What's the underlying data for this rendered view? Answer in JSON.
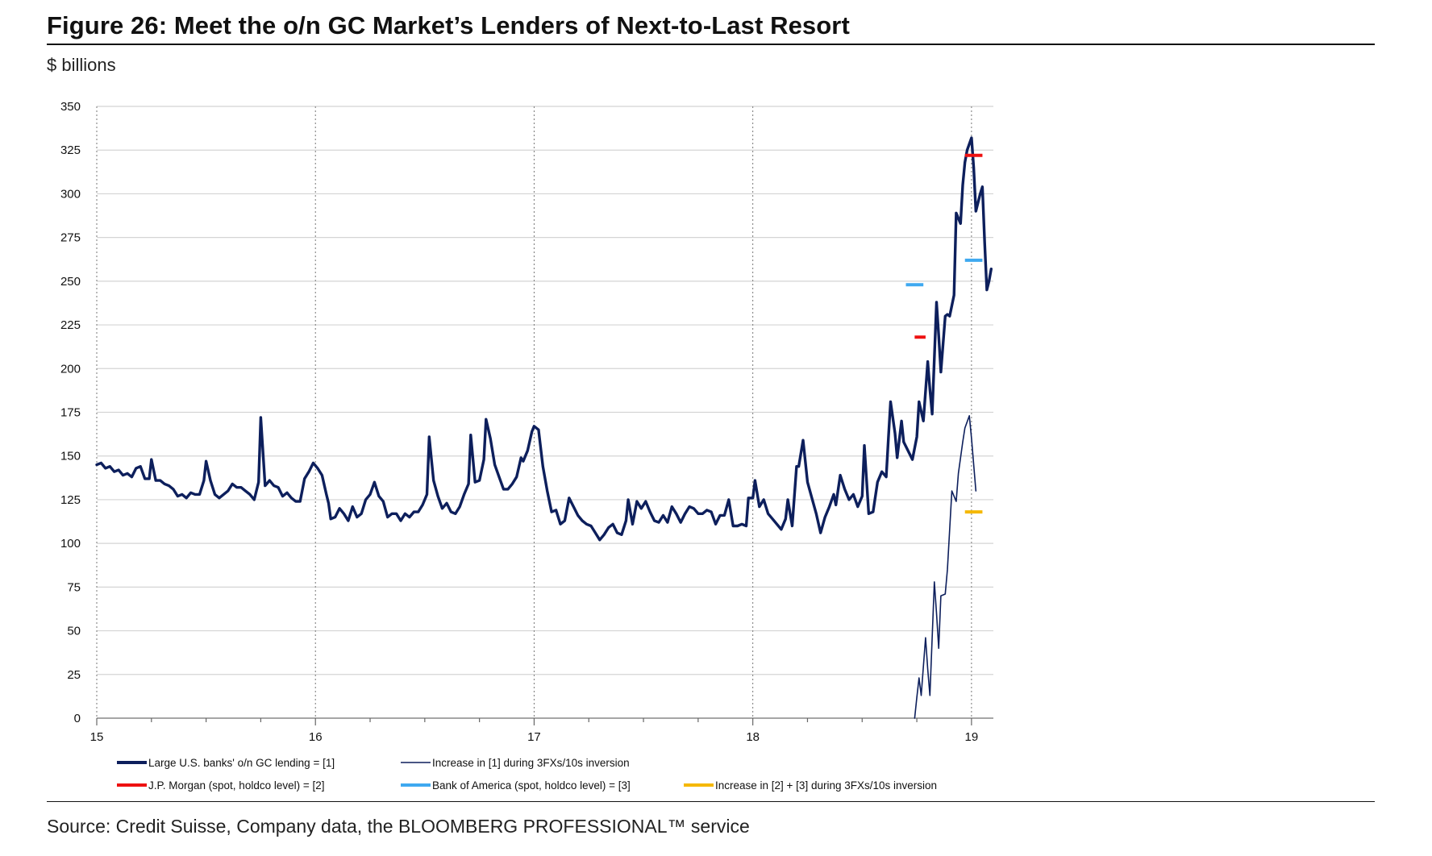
{
  "title": "Figure 26: Meet the o/n GC Market’s Lenders of Next-to-Last Resort",
  "unit": "$ billions",
  "source": "Source: Credit Suisse, Company data, the BLOOMBERG PROFESSIONAL™ service",
  "chart_data": {
    "type": "line",
    "xlim": [
      15,
      19.1
    ],
    "ylim": [
      0,
      350
    ],
    "x_ticks": [
      {
        "value": 15,
        "label": "15"
      },
      {
        "value": 16,
        "label": "16"
      },
      {
        "value": 17,
        "label": "17"
      },
      {
        "value": 18,
        "label": "18"
      },
      {
        "value": 19,
        "label": "19"
      }
    ],
    "y_ticks": [
      {
        "value": 0,
        "label": "0"
      },
      {
        "value": 25,
        "label": "25"
      },
      {
        "value": 50,
        "label": "50"
      },
      {
        "value": 75,
        "label": "75"
      },
      {
        "value": 100,
        "label": "100"
      },
      {
        "value": 125,
        "label": "125"
      },
      {
        "value": 150,
        "label": "150"
      },
      {
        "value": 175,
        "label": "175"
      },
      {
        "value": 200,
        "label": "200"
      },
      {
        "value": 225,
        "label": "225"
      },
      {
        "value": 250,
        "label": "250"
      },
      {
        "value": 275,
        "label": "275"
      },
      {
        "value": 300,
        "label": "300"
      },
      {
        "value": 325,
        "label": "325"
      },
      {
        "value": 350,
        "label": "350"
      }
    ],
    "grid": {
      "horizontal": true,
      "vertical_dotted_at": [
        15,
        16,
        17,
        18,
        19
      ]
    },
    "legend_position": "bottom",
    "series": [
      {
        "name": "Large U.S. banks' o/n GC lending = [1]",
        "color": "#0d1f5c",
        "style": "thick-line",
        "points": [
          [
            15.0,
            145
          ],
          [
            15.02,
            146
          ],
          [
            15.04,
            143
          ],
          [
            15.06,
            144
          ],
          [
            15.08,
            141
          ],
          [
            15.1,
            142
          ],
          [
            15.12,
            139
          ],
          [
            15.14,
            140
          ],
          [
            15.16,
            138
          ],
          [
            15.18,
            143
          ],
          [
            15.2,
            144
          ],
          [
            15.22,
            137
          ],
          [
            15.24,
            137
          ],
          [
            15.25,
            148
          ],
          [
            15.27,
            136
          ],
          [
            15.29,
            136
          ],
          [
            15.31,
            134
          ],
          [
            15.33,
            133
          ],
          [
            15.35,
            131
          ],
          [
            15.37,
            127
          ],
          [
            15.39,
            128
          ],
          [
            15.41,
            126
          ],
          [
            15.43,
            129
          ],
          [
            15.45,
            128
          ],
          [
            15.47,
            128
          ],
          [
            15.49,
            136
          ],
          [
            15.5,
            147
          ],
          [
            15.52,
            136
          ],
          [
            15.54,
            128
          ],
          [
            15.56,
            126
          ],
          [
            15.58,
            128
          ],
          [
            15.6,
            130
          ],
          [
            15.62,
            134
          ],
          [
            15.64,
            132
          ],
          [
            15.66,
            132
          ],
          [
            15.68,
            130
          ],
          [
            15.7,
            128
          ],
          [
            15.72,
            125
          ],
          [
            15.74,
            135
          ],
          [
            15.75,
            172
          ],
          [
            15.77,
            133
          ],
          [
            15.79,
            136
          ],
          [
            15.81,
            133
          ],
          [
            15.83,
            132
          ],
          [
            15.85,
            127
          ],
          [
            15.87,
            129
          ],
          [
            15.89,
            126
          ],
          [
            15.91,
            124
          ],
          [
            15.93,
            124
          ],
          [
            15.95,
            137
          ],
          [
            15.97,
            141
          ],
          [
            15.99,
            146
          ],
          [
            16.01,
            143
          ],
          [
            16.03,
            139
          ],
          [
            16.05,
            128
          ],
          [
            16.06,
            123
          ],
          [
            16.07,
            114
          ],
          [
            16.09,
            115
          ],
          [
            16.11,
            120
          ],
          [
            16.13,
            117
          ],
          [
            16.15,
            113
          ],
          [
            16.17,
            121
          ],
          [
            16.19,
            115
          ],
          [
            16.21,
            117
          ],
          [
            16.23,
            125
          ],
          [
            16.25,
            128
          ],
          [
            16.27,
            135
          ],
          [
            16.29,
            127
          ],
          [
            16.31,
            124
          ],
          [
            16.33,
            115
          ],
          [
            16.35,
            117
          ],
          [
            16.37,
            117
          ],
          [
            16.39,
            113
          ],
          [
            16.41,
            117
          ],
          [
            16.43,
            115
          ],
          [
            16.45,
            118
          ],
          [
            16.47,
            118
          ],
          [
            16.49,
            122
          ],
          [
            16.51,
            128
          ],
          [
            16.52,
            161
          ],
          [
            16.54,
            136
          ],
          [
            16.56,
            127
          ],
          [
            16.58,
            120
          ],
          [
            16.6,
            123
          ],
          [
            16.62,
            118
          ],
          [
            16.64,
            117
          ],
          [
            16.66,
            121
          ],
          [
            16.68,
            128
          ],
          [
            16.7,
            134
          ],
          [
            16.71,
            162
          ],
          [
            16.73,
            135
          ],
          [
            16.75,
            136
          ],
          [
            16.77,
            148
          ],
          [
            16.78,
            171
          ],
          [
            16.8,
            160
          ],
          [
            16.82,
            145
          ],
          [
            16.84,
            138
          ],
          [
            16.86,
            131
          ],
          [
            16.88,
            131
          ],
          [
            16.9,
            134
          ],
          [
            16.92,
            138
          ],
          [
            16.94,
            149
          ],
          [
            16.95,
            147
          ],
          [
            16.97,
            153
          ],
          [
            16.99,
            164
          ],
          [
            17.0,
            167
          ],
          [
            17.02,
            165
          ],
          [
            17.04,
            144
          ],
          [
            17.06,
            130
          ],
          [
            17.08,
            118
          ],
          [
            17.1,
            119
          ],
          [
            17.12,
            111
          ],
          [
            17.14,
            113
          ],
          [
            17.16,
            126
          ],
          [
            17.18,
            121
          ],
          [
            17.2,
            116
          ],
          [
            17.22,
            113
          ],
          [
            17.24,
            111
          ],
          [
            17.26,
            110
          ],
          [
            17.28,
            106
          ],
          [
            17.3,
            102
          ],
          [
            17.32,
            105
          ],
          [
            17.34,
            109
          ],
          [
            17.36,
            111
          ],
          [
            17.38,
            106
          ],
          [
            17.4,
            105
          ],
          [
            17.42,
            113
          ],
          [
            17.43,
            125
          ],
          [
            17.45,
            111
          ],
          [
            17.47,
            124
          ],
          [
            17.49,
            120
          ],
          [
            17.51,
            124
          ],
          [
            17.53,
            118
          ],
          [
            17.55,
            113
          ],
          [
            17.57,
            112
          ],
          [
            17.59,
            116
          ],
          [
            17.61,
            112
          ],
          [
            17.63,
            121
          ],
          [
            17.65,
            117
          ],
          [
            17.67,
            112
          ],
          [
            17.69,
            117
          ],
          [
            17.71,
            121
          ],
          [
            17.73,
            120
          ],
          [
            17.75,
            117
          ],
          [
            17.77,
            117
          ],
          [
            17.79,
            119
          ],
          [
            17.81,
            118
          ],
          [
            17.83,
            111
          ],
          [
            17.85,
            116
          ],
          [
            17.87,
            116
          ],
          [
            17.89,
            125
          ],
          [
            17.91,
            110
          ],
          [
            17.93,
            110
          ],
          [
            17.95,
            111
          ],
          [
            17.97,
            110
          ],
          [
            17.98,
            126
          ],
          [
            18.0,
            126
          ],
          [
            18.01,
            136
          ],
          [
            18.03,
            121
          ],
          [
            18.05,
            125
          ],
          [
            18.07,
            117
          ],
          [
            18.09,
            114
          ],
          [
            18.11,
            111
          ],
          [
            18.13,
            108
          ],
          [
            18.15,
            114
          ],
          [
            18.16,
            125
          ],
          [
            18.18,
            110
          ],
          [
            18.2,
            144
          ],
          [
            18.21,
            144
          ],
          [
            18.23,
            159
          ],
          [
            18.25,
            135
          ],
          [
            18.27,
            126
          ],
          [
            18.29,
            117
          ],
          [
            18.31,
            106
          ],
          [
            18.33,
            115
          ],
          [
            18.35,
            121
          ],
          [
            18.37,
            128
          ],
          [
            18.38,
            122
          ],
          [
            18.4,
            139
          ],
          [
            18.42,
            131
          ],
          [
            18.44,
            125
          ],
          [
            18.46,
            128
          ],
          [
            18.48,
            121
          ],
          [
            18.5,
            127
          ],
          [
            18.51,
            156
          ],
          [
            18.53,
            117
          ],
          [
            18.55,
            118
          ],
          [
            18.57,
            135
          ],
          [
            18.59,
            141
          ],
          [
            18.61,
            138
          ],
          [
            18.62,
            160
          ],
          [
            18.63,
            181
          ],
          [
            18.65,
            163
          ],
          [
            18.66,
            149
          ],
          [
            18.68,
            170
          ],
          [
            18.69,
            158
          ],
          [
            18.71,
            153
          ],
          [
            18.73,
            148
          ],
          [
            18.75,
            161
          ],
          [
            18.76,
            181
          ],
          [
            18.78,
            170
          ],
          [
            18.8,
            204
          ],
          [
            18.81,
            188
          ],
          [
            18.82,
            174
          ],
          [
            18.84,
            238
          ],
          [
            18.85,
            219
          ],
          [
            18.86,
            198
          ],
          [
            18.88,
            230
          ],
          [
            18.89,
            231
          ],
          [
            18.9,
            230
          ],
          [
            18.92,
            242
          ],
          [
            18.93,
            289
          ],
          [
            18.95,
            283
          ],
          [
            18.96,
            305
          ],
          [
            18.97,
            318
          ],
          [
            18.98,
            325
          ],
          [
            19.0,
            332
          ],
          [
            19.01,
            315
          ],
          [
            19.02,
            290
          ],
          [
            19.04,
            300
          ],
          [
            19.05,
            304
          ],
          [
            19.06,
            272
          ],
          [
            19.07,
            245
          ],
          [
            19.08,
            250
          ],
          [
            19.09,
            257
          ]
        ]
      },
      {
        "name": "Increase in [1] during 3FXs/10s inversion",
        "color": "#0d1f5c",
        "style": "thin-line",
        "points": [
          [
            18.74,
            0
          ],
          [
            18.75,
            12
          ],
          [
            18.76,
            23
          ],
          [
            18.77,
            13
          ],
          [
            18.79,
            46
          ],
          [
            18.8,
            28
          ],
          [
            18.81,
            13
          ],
          [
            18.83,
            78
          ],
          [
            18.84,
            60
          ],
          [
            18.85,
            40
          ],
          [
            18.86,
            70
          ],
          [
            18.88,
            71
          ],
          [
            18.89,
            85
          ],
          [
            18.91,
            130
          ],
          [
            18.93,
            124
          ],
          [
            18.94,
            140
          ],
          [
            18.96,
            158
          ],
          [
            18.97,
            166
          ],
          [
            18.99,
            173
          ],
          [
            19.0,
            160
          ],
          [
            19.02,
            130
          ]
        ]
      },
      {
        "name": "J.P. Morgan (spot, holdco level) = [2]",
        "color": "#ee1111",
        "style": "marker-dash",
        "points": [
          [
            18.74,
            218
          ],
          [
            18.79,
            218
          ],
          [
            18.97,
            322
          ],
          [
            19.05,
            322
          ]
        ]
      },
      {
        "name": "Bank of America (spot, holdco level) = [3]",
        "color": "#3fa9f0",
        "style": "marker-dash",
        "points": [
          [
            18.7,
            248
          ],
          [
            18.78,
            248
          ],
          [
            18.97,
            262
          ],
          [
            19.05,
            262
          ]
        ]
      },
      {
        "name": "Increase in [2] + [3] during 3FXs/10s inversion",
        "color": "#f5b800",
        "style": "marker-dash",
        "points": [
          [
            18.97,
            118
          ],
          [
            19.05,
            118
          ]
        ]
      }
    ]
  }
}
